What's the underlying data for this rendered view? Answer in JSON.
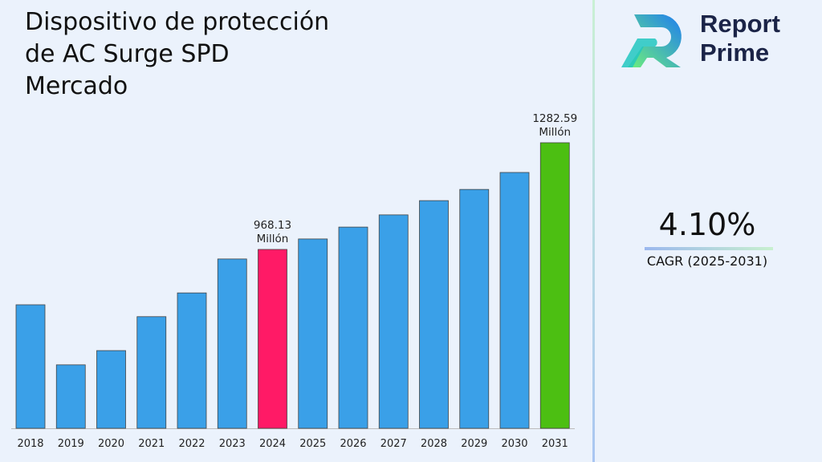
{
  "title": "Dispositivo de protección de AC Surge SPD Mercado",
  "brand": {
    "name_line1": "Report",
    "name_line2": "Prime"
  },
  "cagr": {
    "value": "4.10%",
    "label": "CAGR (2025-2031)"
  },
  "colors": {
    "default": "#3aa0e8",
    "highlight_2024": "#ff1a66",
    "highlight_2031": "#4cbf12"
  },
  "chart_data": {
    "type": "bar",
    "title": "Dispositivo de protección de AC Surge SPD Mercado",
    "categories": [
      "2018",
      "2019",
      "2020",
      "2021",
      "2022",
      "2023",
      "2024",
      "2025",
      "2026",
      "2027",
      "2028",
      "2029",
      "2030",
      "2031"
    ],
    "values": [
      805,
      628,
      670,
      770,
      840,
      940,
      968.13,
      999,
      1034,
      1070,
      1112,
      1145,
      1195,
      1282.59
    ],
    "data_labels": {
      "2024": [
        "968.13",
        "Millón"
      ],
      "2031": [
        "1282.59",
        "Millón"
      ]
    },
    "unit": "Millón",
    "grid": false,
    "xlabel": "",
    "ylabel": ""
  }
}
